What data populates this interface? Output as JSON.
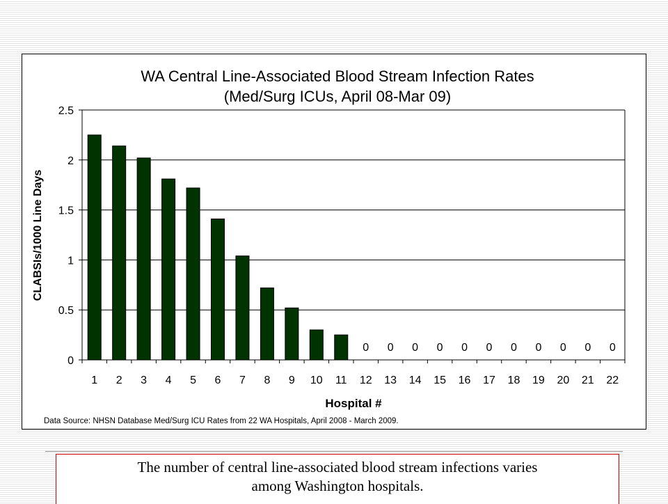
{
  "chart_data": {
    "type": "bar",
    "title": "WA Central Line-Associated Blood Stream Infection Rates",
    "subtitle": "(Med/Surg ICUs, April 08-Mar 09)",
    "xlabel": "Hospital #",
    "ylabel": "CLABSIs/1000 Line Days",
    "ylim": [
      0,
      2.5
    ],
    "yticks": [
      "0",
      "0.5",
      "1",
      "1.5",
      "2",
      "2.5"
    ],
    "grid": true,
    "categories": [
      "1",
      "2",
      "3",
      "4",
      "5",
      "6",
      "7",
      "8",
      "9",
      "10",
      "11",
      "12",
      "13",
      "14",
      "15",
      "16",
      "17",
      "18",
      "19",
      "20",
      "21",
      "22"
    ],
    "values": [
      2.25,
      2.14,
      2.02,
      1.81,
      1.72,
      1.41,
      1.04,
      0.72,
      0.52,
      0.3,
      0.25,
      0,
      0,
      0,
      0,
      0,
      0,
      0,
      0,
      0,
      0,
      0
    ],
    "zero_labels": [
      "0",
      "0",
      "0",
      "0",
      "0",
      "0",
      "0",
      "0",
      "0",
      "0",
      "0"
    ],
    "bar_color": "#003300",
    "source_note": "Data Source: NHSN Database Med/Surg ICU Rates from 22 WA Hospitals, April 2008 - March 2009."
  },
  "caption": {
    "line1": "The number of central line-associated blood stream infections varies",
    "line2": "among Washington hospitals."
  }
}
